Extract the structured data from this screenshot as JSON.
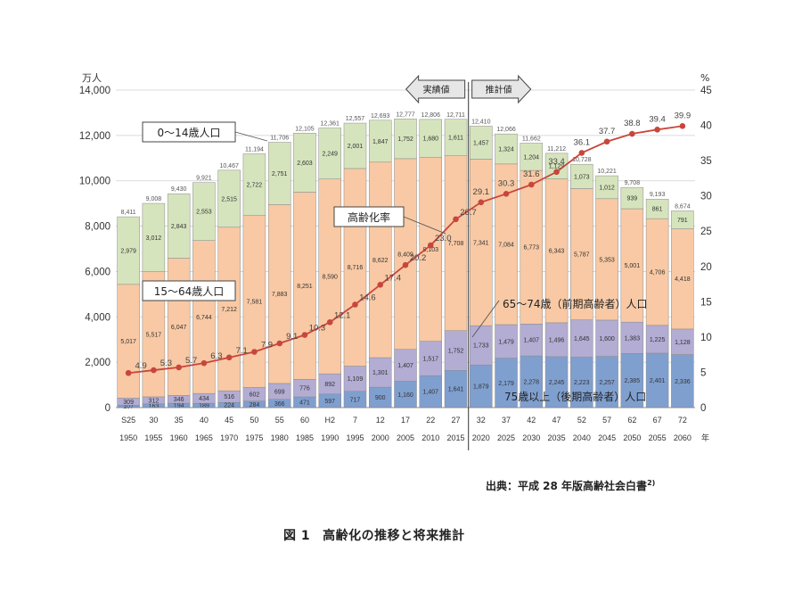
{
  "chart_data": {
    "type": "bar",
    "stacked": true,
    "categories_era": [
      "S25",
      "30",
      "35",
      "40",
      "45",
      "50",
      "55",
      "60",
      "H2",
      "7",
      "12",
      "17",
      "22",
      "27",
      "32",
      "37",
      "42",
      "47",
      "52",
      "57",
      "62",
      "67",
      "72"
    ],
    "categories_year": [
      "1950",
      "1955",
      "1960",
      "1965",
      "1970",
      "1975",
      "1980",
      "1985",
      "1990",
      "1995",
      "2000",
      "2005",
      "2010",
      "2015",
      "2020",
      "2025",
      "2030",
      "2035",
      "2040",
      "2045",
      "2050",
      "2055",
      "2060"
    ],
    "series": [
      {
        "name": "75歳以上（後期高齢者）人口",
        "color": "#7f9fcf",
        "values": [
          107,
          163,
          194,
          189,
          224,
          284,
          366,
          471,
          597,
          717,
          900,
          1160,
          1407,
          1641,
          1879,
          2179,
          2278,
          2245,
          2223,
          2257,
          2385,
          2401,
          2336
        ],
        "labels": [
          "107",
          "163",
          "194",
          "189",
          "224",
          "284",
          "366",
          "471",
          "597",
          "717",
          "900",
          "1,160",
          "1,407",
          "1,641",
          "1,879",
          "2,179",
          "2,278",
          "2,245",
          "2,223",
          "2,257",
          "2,385",
          "2,401",
          "2,336"
        ]
      },
      {
        "name": "65～74歳（前期高齢者）人口",
        "color": "#b3acd3",
        "values": [
          309,
          312,
          346,
          434,
          516,
          602,
          699,
          776,
          892,
          1109,
          1301,
          1407,
          1517,
          1752,
          1733,
          1479,
          1407,
          1496,
          1645,
          1600,
          1383,
          1225,
          1128
        ],
        "labels": [
          "309",
          "312",
          "346",
          "434",
          "516",
          "602",
          "699",
          "776",
          "892",
          "1,109",
          "1,301",
          "1,407",
          "1,517",
          "1,752",
          "1,733",
          "1,479",
          "1,407",
          "1,496",
          "1,645",
          "1,600",
          "1,383",
          "1,225",
          "1,128"
        ]
      },
      {
        "name": "15～64歳人口",
        "color": "#f8c9a4",
        "values": [
          5017,
          5517,
          6047,
          6744,
          7212,
          7581,
          7883,
          8251,
          8590,
          8716,
          8622,
          8409,
          8103,
          7708,
          7341,
          7084,
          6773,
          6343,
          5787,
          5353,
          5001,
          4706,
          4418
        ],
        "labels": [
          "5,017",
          "5,517",
          "6,047",
          "6,744",
          "7,212",
          "7,581",
          "7,883",
          "8,251",
          "8,590",
          "8,716",
          "8,622",
          "8,409",
          "8,103",
          "7,708",
          "7,341",
          "7,084",
          "6,773",
          "6,343",
          "5,787",
          "5,353",
          "5,001",
          "4,706",
          "4,418"
        ]
      },
      {
        "name": "0～14歳人口",
        "color": "#d6e4bd",
        "values": [
          2979,
          3012,
          2843,
          2553,
          2515,
          2722,
          2751,
          2603,
          2249,
          2001,
          1847,
          1752,
          1680,
          1611,
          1457,
          1324,
          1204,
          1129,
          1073,
          1012,
          939,
          861,
          791
        ],
        "labels": [
          "2,979",
          "3,012",
          "2,843",
          "2,553",
          "2,515",
          "2,722",
          "2,751",
          "2,603",
          "2,249",
          "2,001",
          "1,847",
          "1,752",
          "1,680",
          "1,611",
          "1,457",
          "1,324",
          "1,204",
          "1,129",
          "1,073",
          "1,012",
          "939",
          "861",
          "791"
        ]
      }
    ],
    "totals": [
      "8,411",
      "9,008",
      "9,430",
      "9,921",
      "10,467",
      "11,194",
      "11,706",
      "12,105",
      "12,361",
      "12,557",
      "12,693",
      "12,777",
      "12,806",
      "12,711",
      "12,410",
      "12,066",
      "11,662",
      "11,212",
      "10,728",
      "10,221",
      "9,708",
      "9,193",
      "8,674"
    ],
    "rate_series": {
      "name": "高齢化率",
      "color": "#c8463c",
      "values": [
        4.9,
        5.3,
        5.7,
        6.3,
        7.1,
        7.9,
        9.1,
        10.3,
        12.1,
        14.6,
        17.4,
        20.2,
        23.0,
        26.7,
        29.1,
        30.3,
        31.6,
        33.4,
        36.1,
        37.7,
        38.8,
        39.4,
        39.9
      ],
      "labels": [
        "4.9",
        "5.3",
        "5.7",
        "6.3",
        "7.1",
        "7.9",
        "9.1",
        "10.3",
        "12.1",
        "14.6",
        "17.4",
        "20.2",
        "23.0",
        "26.7",
        "29.1",
        "30.3",
        "31.6",
        "33.4",
        "36.1",
        "37.7",
        "38.8",
        "39.4",
        "39.9"
      ]
    },
    "y_left": {
      "unit": "万人",
      "min": 0,
      "max": 14000,
      "ticks": [
        "0",
        "2,000",
        "4,000",
        "6,000",
        "8,000",
        "10,000",
        "12,000",
        "14,000"
      ]
    },
    "y_right": {
      "unit": "%",
      "min": 0,
      "max": 45,
      "ticks": [
        "0",
        "5",
        "10",
        "15",
        "20",
        "25",
        "30",
        "35",
        "40",
        "45"
      ]
    },
    "x_unit": "年",
    "period_actual": "実績値",
    "period_forecast": "推計値",
    "callouts": {
      "child": "0～14歳人口",
      "working": "15～64歳人口",
      "rate": "高齢化率",
      "early_elderly": "65～74歳（前期高齢者）人口",
      "late_elderly": "75歳以上（後期高齢者）人口"
    },
    "grid": true
  },
  "source": {
    "text": "出典：平成 28 年版高齢社会白書",
    "note": "2)"
  },
  "caption": {
    "number": "図 1",
    "title": "高齢化の推移と将来推計"
  }
}
